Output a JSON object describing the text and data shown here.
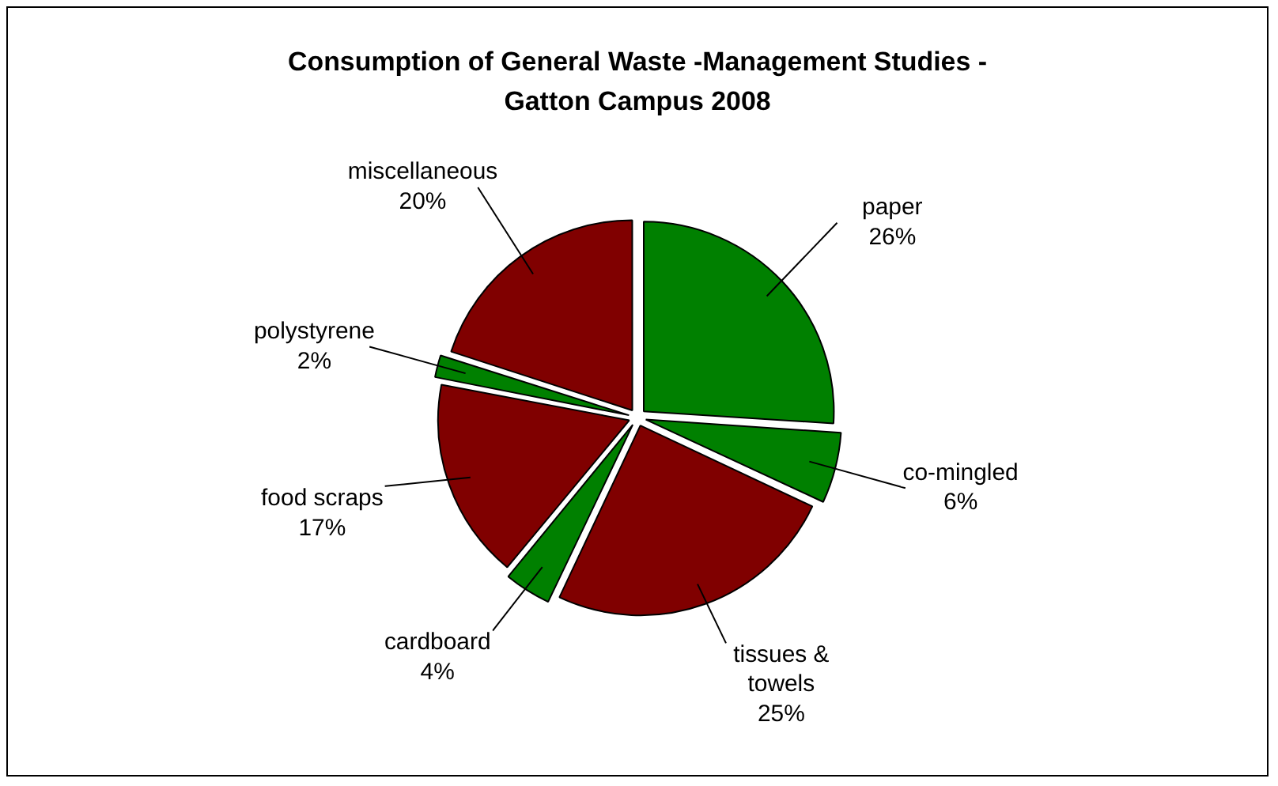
{
  "chart_data": {
    "type": "pie",
    "title": "Consumption of General Waste -Management Studies - Gatton Campus 2008",
    "categories": [
      "paper",
      "co-mingled",
      "tissues & towels",
      "cardboard",
      "food scraps",
      "polystyrene",
      "miscellaneous"
    ],
    "values": [
      26,
      6,
      25,
      4,
      17,
      2,
      20
    ],
    "colors": [
      "#008000",
      "#008000",
      "#800000",
      "#008000",
      "#800000",
      "#008000",
      "#800000"
    ],
    "value_labels": [
      "26%",
      "6%",
      "25%",
      "4%",
      "17%",
      "2%",
      "20%"
    ],
    "legend": false
  }
}
